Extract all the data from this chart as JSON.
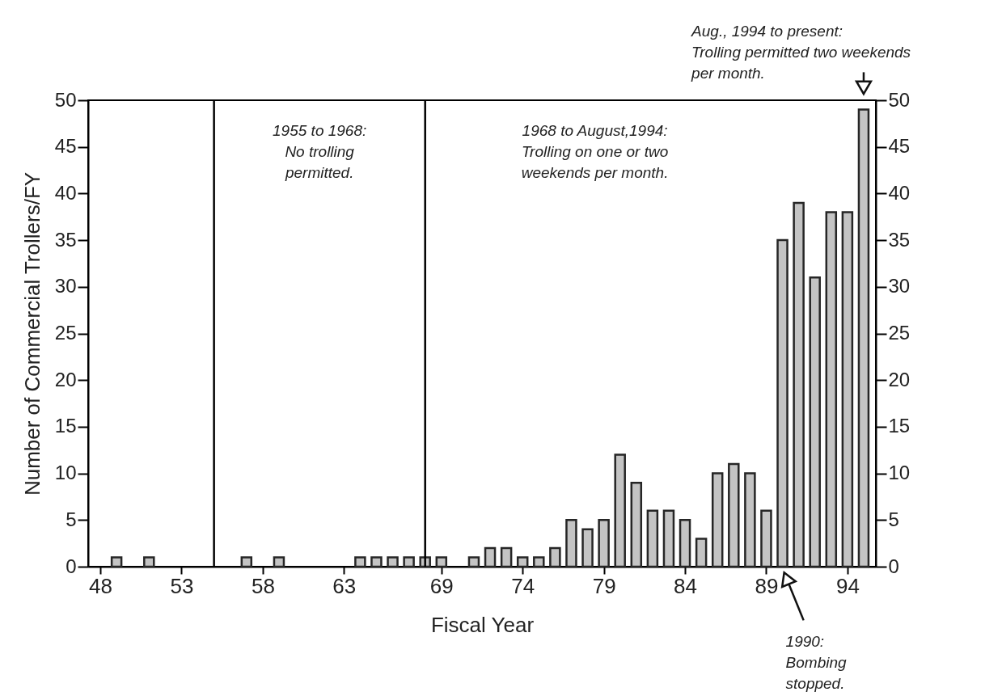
{
  "chart_data": {
    "type": "bar",
    "xlabel": "Fiscal Year",
    "ylabel": "Number of Commercial Trollers/FY",
    "x": [
      49,
      51,
      57,
      59,
      64,
      65,
      66,
      67,
      68,
      69,
      71,
      72,
      73,
      74,
      75,
      76,
      77,
      78,
      79,
      80,
      81,
      82,
      83,
      84,
      85,
      86,
      87,
      88,
      89,
      90,
      91,
      92,
      93,
      94,
      95
    ],
    "values": [
      1,
      1,
      1,
      1,
      1,
      1,
      1,
      1,
      1,
      1,
      1,
      2,
      2,
      1,
      1,
      2,
      5,
      4,
      5,
      12,
      9,
      6,
      6,
      5,
      3,
      10,
      11,
      10,
      6,
      35,
      39,
      31,
      38,
      38,
      49
    ],
    "color": "#c4c4c4",
    "xlim": [
      47.5,
      95.5
    ],
    "xticks": [
      48,
      53,
      58,
      63,
      69,
      74,
      79,
      84,
      89,
      94
    ],
    "ylim": [
      0,
      50
    ],
    "yticks": [
      0,
      5,
      10,
      15,
      20,
      25,
      30,
      35,
      40,
      45,
      50
    ],
    "y2lim": [
      0,
      50
    ],
    "y2ticks": [
      0,
      5,
      10,
      15,
      20,
      25,
      30,
      35,
      40,
      45,
      50
    ],
    "ref_lines": [
      {
        "axis": "x",
        "value": 55,
        "color": "#000000"
      },
      {
        "axis": "x",
        "value": 68,
        "color": "#000000"
      }
    ],
    "annotations": [
      "1955 to 1968:\nNo trolling\npermitted.",
      "1968 to August,1994:\nTrolling on one or two\nweekends per month.",
      {
        "text": "Aug., 1994 to present:\nTrolling permitted two weekends\nper month.",
        "x": 95,
        "y": 49
      },
      "1990:\nBombing\nstopped."
    ]
  }
}
